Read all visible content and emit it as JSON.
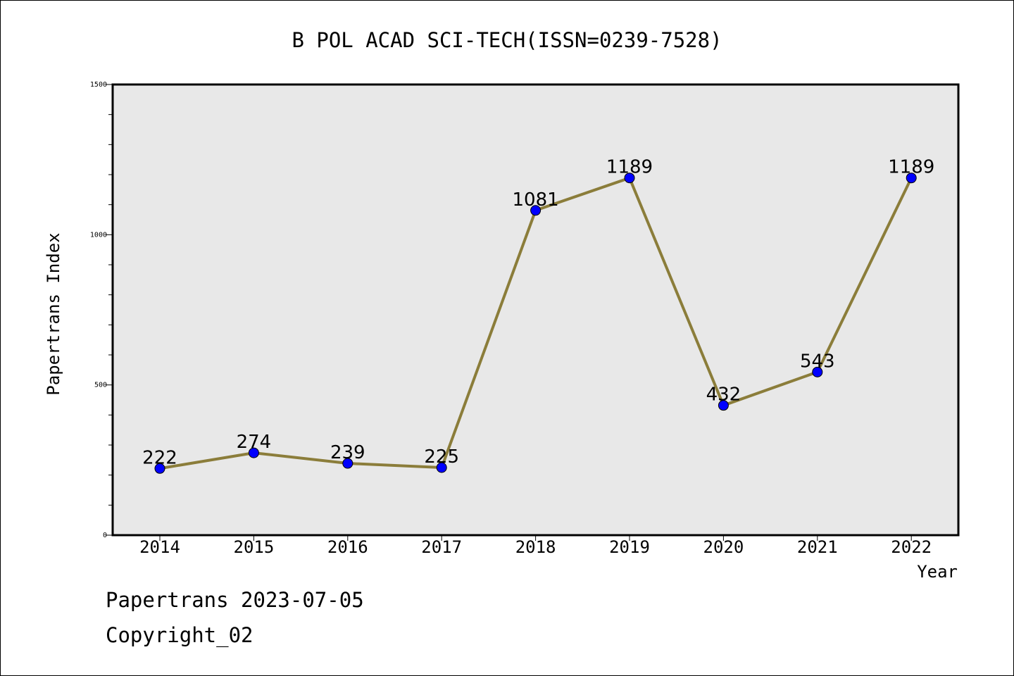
{
  "chart_data": {
    "type": "line",
    "title": "B POL ACAD SCI-TECH(ISSN=0239-7528)",
    "xlabel": "Year",
    "ylabel": "Papertrans Index",
    "categories": [
      "2014",
      "2015",
      "2016",
      "2017",
      "2018",
      "2019",
      "2020",
      "2021",
      "2022"
    ],
    "series": [
      {
        "values": [
          222,
          274,
          239,
          225,
          1081,
          1189,
          432,
          543,
          1189
        ],
        "data_labels": [
          "222",
          "274",
          "239",
          "225",
          "1081",
          "1189",
          "432",
          "543",
          "1189"
        ]
      }
    ],
    "y_ticks": [
      "0",
      "500",
      "1000",
      "1500"
    ],
    "ylim": [
      0,
      1500
    ],
    "grid": false,
    "legend": "none",
    "colors": {
      "line": "#8B7D3A",
      "marker": "#0000FF",
      "plot_background": "#E8E8E8"
    }
  },
  "footer": {
    "date_text": "Papertrans 2023-07-05",
    "copyright_text": "Copyright_02"
  }
}
